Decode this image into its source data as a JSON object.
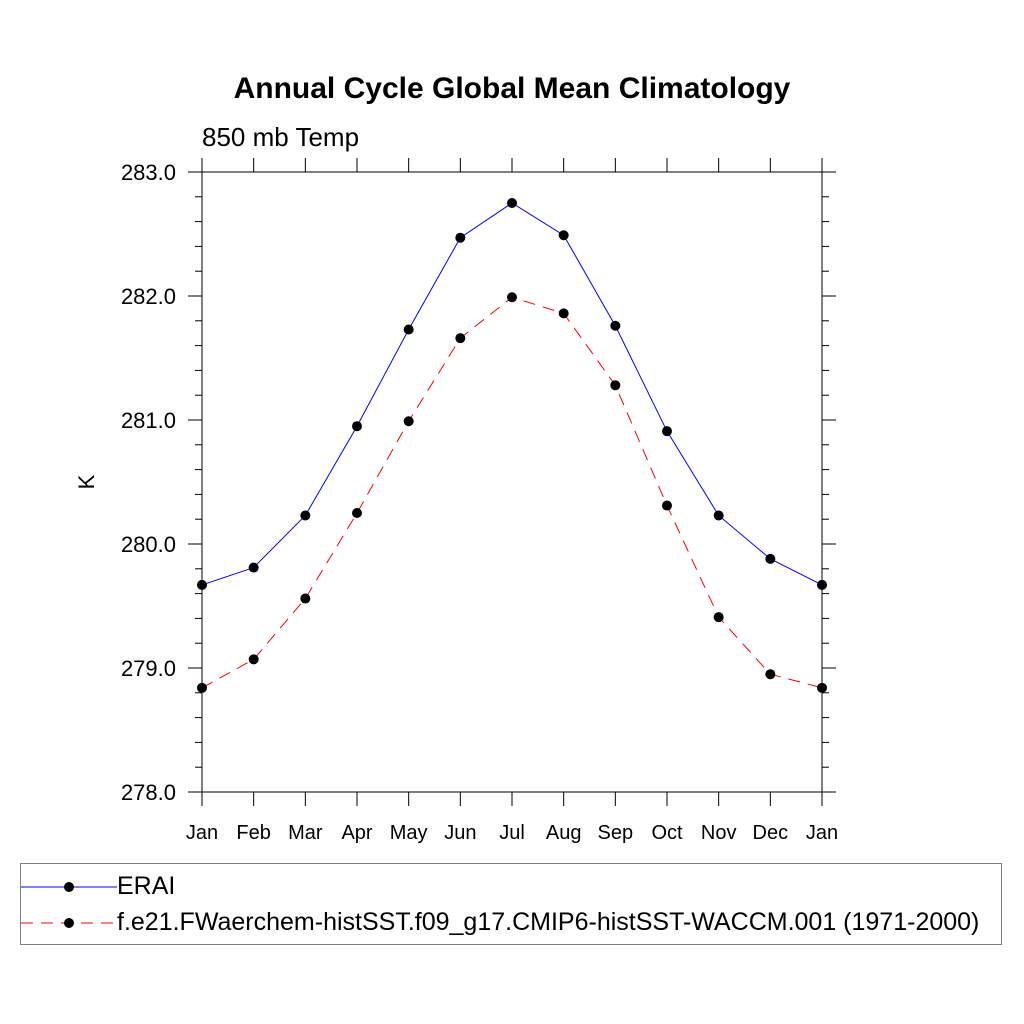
{
  "title": "Annual Cycle Global Mean Climatology",
  "subtitle": "850 mb Temp",
  "chart_data": {
    "type": "line",
    "title": "Annual Cycle Global Mean Climatology",
    "subtitle": "850 mb Temp",
    "xlabel": "",
    "ylabel": "K",
    "categories": [
      "Jan",
      "Feb",
      "Mar",
      "Apr",
      "May",
      "Jun",
      "Jul",
      "Aug",
      "Sep",
      "Oct",
      "Nov",
      "Dec",
      "Jan"
    ],
    "ylim": [
      278.0,
      283.0
    ],
    "yticks": [
      "278.0",
      "279.0",
      "280.0",
      "281.0",
      "282.0",
      "283.0"
    ],
    "grid": false,
    "legend_position": "bottom",
    "series": [
      {
        "name": "ERAI",
        "color": "#0000ff",
        "dash": "solid",
        "marker": "filled-circle",
        "values": [
          279.67,
          279.81,
          280.23,
          280.95,
          281.73,
          282.47,
          282.75,
          282.49,
          281.76,
          280.91,
          280.23,
          279.88,
          279.67
        ]
      },
      {
        "name": "f.e21.FWaerchem-histSST.f09_g17.CMIP6-histSST-WACCM.001 (1971-2000)",
        "color": "#ff0000",
        "dash": "dashed",
        "marker": "filled-circle",
        "values": [
          278.84,
          279.07,
          279.56,
          280.25,
          280.99,
          281.66,
          281.99,
          281.86,
          281.28,
          280.31,
          279.41,
          278.95,
          278.84
        ]
      }
    ]
  }
}
